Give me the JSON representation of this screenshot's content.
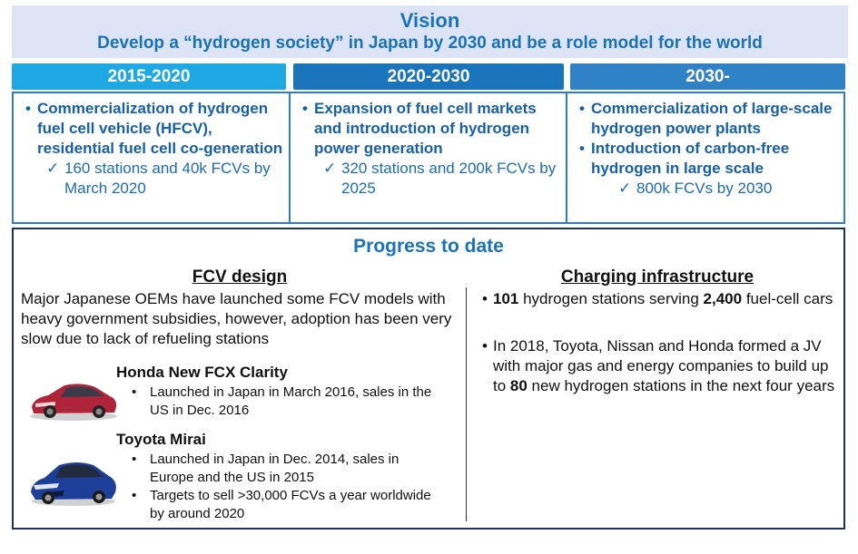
{
  "vision": {
    "title": "Vision",
    "subtitle": "Develop a “hydrogen society” in Japan by 2030 and be a role model for the world"
  },
  "periods": [
    {
      "label": "2015-2020",
      "goals": [
        "Commercialization of hydrogen fuel cell vehicle (HFCV), residential fuel cell co-generation"
      ],
      "targets": [
        "160 stations and 40k FCVs by March 2020"
      ]
    },
    {
      "label": "2020-2030",
      "goals": [
        "Expansion of fuel cell markets and introduction of hydrogen power generation"
      ],
      "targets": [
        "320 stations and 200k FCVs by 2025"
      ]
    },
    {
      "label": "2030-",
      "goals": [
        "Commercialization of large-scale hydrogen power plants",
        "Introduction of carbon-free hydrogen in large scale"
      ],
      "targets": [
        "800k FCVs by 2030"
      ]
    }
  ],
  "progress": {
    "title": "Progress to date",
    "fcv": {
      "heading": "FCV design",
      "summary": "Major Japanese OEMs have launched some FCV models with heavy government subsidies, however, adoption has been very slow due to lack of refueling stations",
      "models": [
        {
          "name": "Honda New FCX Clarity",
          "bullets": [
            "Launched in Japan in March 2016, sales in the US in Dec. 2016"
          ]
        },
        {
          "name": "Toyota Mirai",
          "bullets": [
            "Launched in Japan in Dec. 2014, sales in Europe and the US in 2015",
            "Targets to sell >30,000 FCVs a year worldwide by around 2020"
          ]
        }
      ]
    },
    "infra": {
      "heading": "Charging infrastructure",
      "b1_n1": "101",
      "b1_t1": " hydrogen stations serving ",
      "b1_n2": "2,400",
      "b1_t2": " fuel-cell cars",
      "b2_t1": "In 2018, Toyota, Nissan and Honda formed a JV with major gas and energy companies to build up to ",
      "b2_n1": "80",
      "b2_t2": " new hydrogen stations in the next four years"
    }
  },
  "colors": {
    "vision_bg": "#dce4f6",
    "title_blue": "#1a73b8",
    "tab1": "#1ea9e5",
    "tab2": "#1b75bd",
    "tab3": "#2f82c6",
    "honda_car": "#b0243a",
    "toyota_car": "#1d3f9a"
  },
  "icons": {
    "bullet": "•",
    "check": "✓",
    "honda_car": "red-sedan-image",
    "toyota_car": "blue-sedan-image"
  }
}
